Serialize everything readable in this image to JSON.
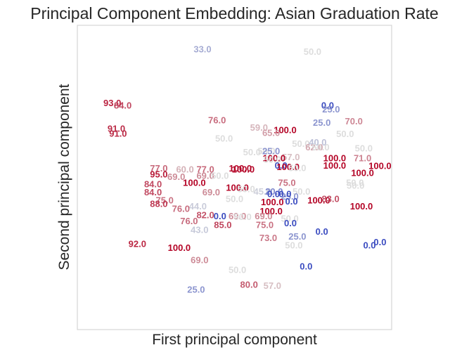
{
  "chart_data": {
    "type": "scatter",
    "title": "Principal Component Embedding: Asian Graduation Rate",
    "xlabel": "First principal component",
    "ylabel": "Second principal component",
    "xlim": [
      -2.7,
      2.7
    ],
    "ylim": [
      -3.0,
      3.2
    ],
    "grid": false,
    "legend": "none",
    "color_scale": {
      "type": "coolwarm",
      "min": 0,
      "max": 100,
      "low": "#3b4cc0",
      "mid": "#dddddd",
      "high": "#b40426"
    },
    "points": [
      {
        "x": -0.55,
        "y": 2.7,
        "value": "33.0"
      },
      {
        "x": 1.34,
        "y": 2.65,
        "value": "50.0"
      },
      {
        "x": -2.1,
        "y": 1.6,
        "value": "93.0"
      },
      {
        "x": -1.92,
        "y": 1.55,
        "value": "84.0"
      },
      {
        "x": 1.6,
        "y": 1.55,
        "value": "0.0"
      },
      {
        "x": 1.66,
        "y": 1.47,
        "value": "25.0"
      },
      {
        "x": -0.3,
        "y": 1.25,
        "value": "76.0"
      },
      {
        "x": 1.5,
        "y": 1.2,
        "value": "25.0"
      },
      {
        "x": 2.05,
        "y": 1.23,
        "value": "70.0"
      },
      {
        "x": -2.03,
        "y": 1.08,
        "value": "91.0"
      },
      {
        "x": -2.0,
        "y": 0.98,
        "value": "91.0"
      },
      {
        "x": 0.42,
        "y": 1.1,
        "value": "59.0"
      },
      {
        "x": 0.87,
        "y": 1.05,
        "value": "100.0"
      },
      {
        "x": 0.63,
        "y": 0.99,
        "value": "65.0"
      },
      {
        "x": 1.9,
        "y": 0.97,
        "value": "50.0"
      },
      {
        "x": -0.18,
        "y": 0.88,
        "value": "50.0"
      },
      {
        "x": 1.14,
        "y": 0.77,
        "value": "50.0"
      },
      {
        "x": 1.43,
        "y": 0.8,
        "value": "40.0"
      },
      {
        "x": 1.37,
        "y": 0.7,
        "value": "62.0"
      },
      {
        "x": 1.48,
        "y": 0.7,
        "value": "50.0"
      },
      {
        "x": 2.22,
        "y": 0.68,
        "value": "50.0"
      },
      {
        "x": 0.3,
        "y": 0.6,
        "value": "50.0"
      },
      {
        "x": 0.55,
        "y": 0.62,
        "value": "50.0"
      },
      {
        "x": 0.63,
        "y": 0.62,
        "value": "25.0"
      },
      {
        "x": 0.97,
        "y": 0.5,
        "value": "57.0"
      },
      {
        "x": 0.68,
        "y": 0.48,
        "value": "100.0"
      },
      {
        "x": 0.65,
        "y": 0.45,
        "value": "50.0"
      },
      {
        "x": 1.72,
        "y": 0.48,
        "value": "100.0"
      },
      {
        "x": 2.2,
        "y": 0.48,
        "value": "71.0"
      },
      {
        "x": 0.8,
        "y": 0.33,
        "value": "0.0"
      },
      {
        "x": 0.92,
        "y": 0.3,
        "value": "100.0"
      },
      {
        "x": 1.72,
        "y": 0.33,
        "value": "100.0"
      },
      {
        "x": 2.5,
        "y": 0.32,
        "value": "100.0"
      },
      {
        "x": 1.08,
        "y": 0.28,
        "value": "50.0"
      },
      {
        "x": -1.3,
        "y": 0.27,
        "value": "77.0"
      },
      {
        "x": -0.85,
        "y": 0.25,
        "value": "60.0"
      },
      {
        "x": -0.5,
        "y": 0.25,
        "value": "77.0"
      },
      {
        "x": 0.1,
        "y": 0.27,
        "value": "100.0"
      },
      {
        "x": 0.15,
        "y": 0.25,
        "value": "100.0"
      },
      {
        "x": 2.2,
        "y": 0.18,
        "value": "100.0"
      },
      {
        "x": -1.3,
        "y": 0.15,
        "value": "95.0"
      },
      {
        "x": -1.0,
        "y": 0.1,
        "value": "69.0"
      },
      {
        "x": -0.5,
        "y": 0.12,
        "value": "69.0"
      },
      {
        "x": -0.25,
        "y": 0.12,
        "value": "50.0"
      },
      {
        "x": -1.4,
        "y": -0.05,
        "value": "84.0"
      },
      {
        "x": -0.69,
        "y": -0.02,
        "value": "100.0"
      },
      {
        "x": 0.9,
        "y": -0.02,
        "value": "75.0"
      },
      {
        "x": 2.07,
        "y": -0.02,
        "value": "50.0"
      },
      {
        "x": 2.08,
        "y": -0.08,
        "value": "50.0"
      },
      {
        "x": 0.05,
        "y": -0.12,
        "value": "100.0"
      },
      {
        "x": 0.2,
        "y": -0.15,
        "value": "50.0"
      },
      {
        "x": 0.48,
        "y": -0.2,
        "value": "45.0"
      },
      {
        "x": 0.68,
        "y": -0.2,
        "value": "20.0"
      },
      {
        "x": 1.15,
        "y": -0.2,
        "value": "50.0"
      },
      {
        "x": -1.4,
        "y": -0.22,
        "value": "84.0"
      },
      {
        "x": -0.4,
        "y": -0.22,
        "value": "69.0"
      },
      {
        "x": 0.95,
        "y": -0.3,
        "value": "25.0"
      },
      {
        "x": 0.87,
        "y": -0.25,
        "value": "0.0"
      },
      {
        "x": 0.67,
        "y": -0.25,
        "value": "0.0"
      },
      {
        "x": -1.2,
        "y": -0.38,
        "value": "75.0"
      },
      {
        "x": 0.0,
        "y": -0.35,
        "value": "50.0"
      },
      {
        "x": 0.65,
        "y": -0.42,
        "value": "100.0"
      },
      {
        "x": 0.98,
        "y": -0.4,
        "value": "0.0"
      },
      {
        "x": 1.45,
        "y": -0.38,
        "value": "100.0"
      },
      {
        "x": 1.65,
        "y": -0.35,
        "value": "83.0"
      },
      {
        "x": -1.3,
        "y": -0.45,
        "value": "88.0"
      },
      {
        "x": -0.63,
        "y": -0.5,
        "value": "44.0"
      },
      {
        "x": 2.18,
        "y": -0.5,
        "value": "100.0"
      },
      {
        "x": -0.92,
        "y": -0.55,
        "value": "76.0"
      },
      {
        "x": 0.63,
        "y": -0.6,
        "value": "100.0"
      },
      {
        "x": -0.5,
        "y": -0.68,
        "value": "82.0"
      },
      {
        "x": -0.25,
        "y": -0.7,
        "value": "0.0"
      },
      {
        "x": 0.05,
        "y": -0.7,
        "value": "69.0"
      },
      {
        "x": 0.14,
        "y": -0.72,
        "value": "50.0"
      },
      {
        "x": 0.5,
        "y": -0.7,
        "value": "69.0"
      },
      {
        "x": 0.95,
        "y": -0.75,
        "value": "50.0"
      },
      {
        "x": -0.78,
        "y": -0.8,
        "value": "76.0"
      },
      {
        "x": -0.2,
        "y": -0.88,
        "value": "85.0"
      },
      {
        "x": 0.52,
        "y": -0.88,
        "value": "75.0"
      },
      {
        "x": 0.96,
        "y": -0.85,
        "value": "0.0"
      },
      {
        "x": -0.6,
        "y": -0.98,
        "value": "43.0"
      },
      {
        "x": 1.08,
        "y": -1.12,
        "value": "25.0"
      },
      {
        "x": 1.5,
        "y": -1.02,
        "value": "0.0"
      },
      {
        "x": 0.58,
        "y": -1.15,
        "value": "73.0"
      },
      {
        "x": 1.02,
        "y": -1.3,
        "value": "50.0"
      },
      {
        "x": 2.32,
        "y": -1.3,
        "value": "0.0"
      },
      {
        "x": 2.5,
        "y": -1.23,
        "value": "0.0"
      },
      {
        "x": -1.67,
        "y": -1.27,
        "value": "92.0"
      },
      {
        "x": -0.95,
        "y": -1.35,
        "value": "100.0"
      },
      {
        "x": -0.6,
        "y": -1.6,
        "value": "69.0"
      },
      {
        "x": 0.05,
        "y": -1.8,
        "value": "50.0"
      },
      {
        "x": 1.23,
        "y": -1.73,
        "value": "0.0"
      },
      {
        "x": 0.25,
        "y": -2.1,
        "value": "80.0"
      },
      {
        "x": 0.65,
        "y": -2.12,
        "value": "57.0"
      },
      {
        "x": -0.66,
        "y": -2.2,
        "value": "25.0"
      }
    ]
  }
}
